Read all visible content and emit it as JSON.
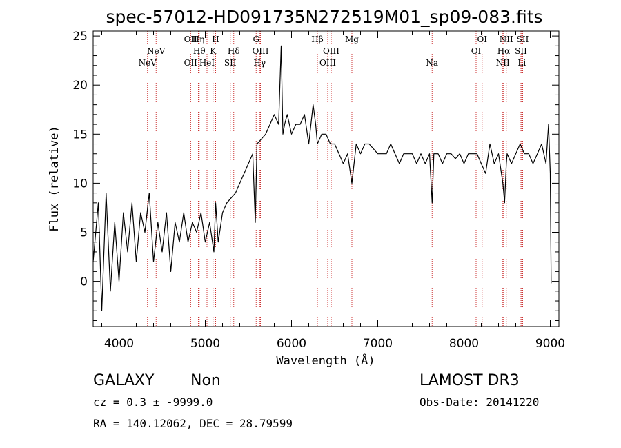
{
  "chart_data": {
    "type": "line",
    "title": "spec-57012-HD091735N272519M01_sp09-083.fits",
    "xlabel": "Wavelength (Å)",
    "ylabel": "Flux (relative)",
    "xlim": [
      3700,
      9100
    ],
    "ylim": [
      -4.6,
      25.5
    ],
    "xticks": [
      4000,
      5000,
      6000,
      7000,
      8000,
      9000
    ],
    "yticks": [
      0,
      5,
      10,
      15,
      20,
      25
    ],
    "grid": false,
    "series": [
      {
        "name": "flux",
        "color": "#000000",
        "x": [
          3700,
          3760,
          3800,
          3850,
          3900,
          3950,
          4000,
          4050,
          4100,
          4150,
          4200,
          4250,
          4300,
          4350,
          4400,
          4450,
          4500,
          4550,
          4600,
          4650,
          4700,
          4750,
          4800,
          4850,
          4900,
          4950,
          5000,
          5050,
          5100,
          5120,
          5150,
          5200,
          5250,
          5300,
          5350,
          5400,
          5450,
          5500,
          5550,
          5580,
          5600,
          5650,
          5700,
          5750,
          5800,
          5850,
          5880,
          5900,
          5920,
          5950,
          6000,
          6050,
          6100,
          6150,
          6200,
          6250,
          6280,
          6300,
          6350,
          6400,
          6450,
          6500,
          6550,
          6600,
          6650,
          6700,
          6750,
          6800,
          6850,
          6900,
          6950,
          7000,
          7050,
          7100,
          7150,
          7200,
          7250,
          7300,
          7350,
          7400,
          7450,
          7500,
          7550,
          7600,
          7630,
          7650,
          7700,
          7750,
          7800,
          7850,
          7900,
          7950,
          8000,
          8050,
          8100,
          8150,
          8200,
          8250,
          8300,
          8350,
          8400,
          8450,
          8470,
          8490,
          8500,
          8550,
          8600,
          8650,
          8700,
          8750,
          8800,
          8850,
          8900,
          8950,
          8980,
          9000,
          9010
        ],
        "y": [
          2,
          8,
          -3,
          9,
          -1,
          6,
          0,
          7,
          3,
          8,
          2,
          7,
          5,
          9,
          2,
          6,
          3,
          7,
          1,
          6,
          4,
          7,
          4,
          6,
          5,
          7,
          4,
          6,
          3,
          8,
          4,
          7,
          8,
          8.5,
          9,
          10,
          11,
          12,
          13,
          6,
          14,
          14.5,
          15,
          16,
          17,
          16,
          24,
          15,
          16,
          17,
          15,
          16,
          16,
          17,
          14,
          18,
          16,
          14,
          15,
          15,
          14,
          14,
          13,
          12,
          13,
          10,
          14,
          13,
          14,
          14,
          13.5,
          13,
          13,
          13,
          14,
          13,
          12,
          13,
          13,
          13,
          12,
          13,
          12,
          13,
          8,
          13,
          13,
          12,
          13,
          13,
          12.5,
          13,
          12,
          13,
          13,
          13,
          12,
          11,
          14,
          12,
          13,
          10,
          8,
          12,
          13,
          12,
          13,
          14,
          13,
          13,
          12,
          13,
          14,
          12,
          16,
          11,
          -0.2
        ]
      }
    ],
    "emission_lines": [
      {
        "label": "NeV",
        "wavelength": 4430,
        "row": 2
      },
      {
        "label": "NeV",
        "wavelength": 4330,
        "row": 3
      },
      {
        "label": "OII",
        "wavelength": 4830,
        "row": 1
      },
      {
        "label": "Hη",
        "wavelength": 4920,
        "row": 1
      },
      {
        "label": "H",
        "wavelength": 5120,
        "row": 1
      },
      {
        "label": "Hθ",
        "wavelength": 4930,
        "row": 2
      },
      {
        "label": "K",
        "wavelength": 5090,
        "row": 2
      },
      {
        "label": "Hδ",
        "wavelength": 5330,
        "row": 2
      },
      {
        "label": "OII",
        "wavelength": 4830,
        "row": 3
      },
      {
        "label": "HeI",
        "wavelength": 5020,
        "row": 3
      },
      {
        "label": "SII",
        "wavelength": 5290,
        "row": 3
      },
      {
        "label": "G",
        "wavelength": 5590,
        "row": 1
      },
      {
        "label": "OIII",
        "wavelength": 5640,
        "row": 2
      },
      {
        "label": "Hγ",
        "wavelength": 5630,
        "row": 3
      },
      {
        "label": "Hβ",
        "wavelength": 6300,
        "row": 1
      },
      {
        "label": "OIII",
        "wavelength": 6460,
        "row": 2
      },
      {
        "label": "OIII",
        "wavelength": 6420,
        "row": 3
      },
      {
        "label": "Mg",
        "wavelength": 6700,
        "row": 1
      },
      {
        "label": "Na",
        "wavelength": 7630,
        "row": 3
      },
      {
        "label": "OI",
        "wavelength": 8210,
        "row": 1
      },
      {
        "label": "OI",
        "wavelength": 8140,
        "row": 2
      },
      {
        "label": "NII",
        "wavelength": 8490,
        "row": 1
      },
      {
        "label": "Hα",
        "wavelength": 8460,
        "row": 2
      },
      {
        "label": "NII",
        "wavelength": 8450,
        "row": 3
      },
      {
        "label": "SII",
        "wavelength": 8680,
        "row": 1
      },
      {
        "label": "SII",
        "wavelength": 8660,
        "row": 2
      },
      {
        "label": "Li",
        "wavelength": 8670,
        "row": 3
      }
    ],
    "line_marker_color": "#cc3333"
  },
  "info": {
    "class": "GALAXY",
    "subclass": "Non",
    "survey": "LAMOST DR3",
    "cz": "cz = 0.3 ± -9999.0",
    "obs_date": "Obs-Date: 20141220",
    "coords": "RA = 140.12062, DEC =  28.79599"
  }
}
